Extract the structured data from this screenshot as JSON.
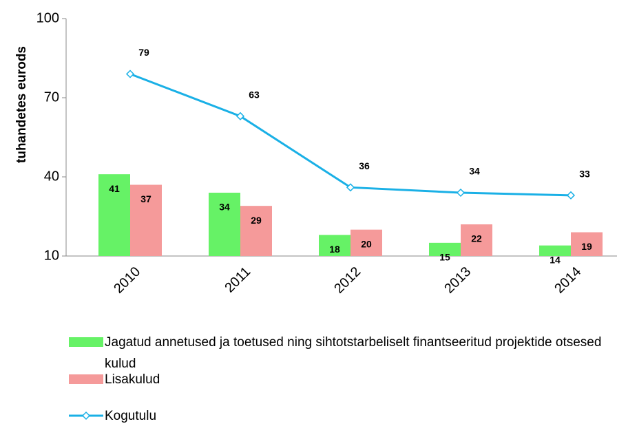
{
  "chart_data": {
    "type": "bar_line",
    "y_label": "tuhandetes eurods",
    "categories": [
      "2010",
      "2011",
      "2012",
      "2013",
      "2014"
    ],
    "ylim": [
      10,
      100
    ],
    "yticks": [
      10,
      40,
      70,
      100
    ],
    "series": [
      {
        "name": "Jagatud annetused ja toetused ning sihtotstarbeliselt finantseeritud projektide otsesed kulud",
        "type": "bar",
        "color": "#66f266",
        "values": [
          41,
          34,
          18,
          15,
          14
        ]
      },
      {
        "name": "Lisakulud",
        "type": "bar",
        "color": "#f59a9a",
        "values": [
          37,
          29,
          20,
          22,
          19
        ]
      },
      {
        "name": "Kogutulu",
        "type": "line",
        "color": "#1ab0e6",
        "values": [
          79,
          63,
          36,
          34,
          33
        ]
      }
    ]
  }
}
